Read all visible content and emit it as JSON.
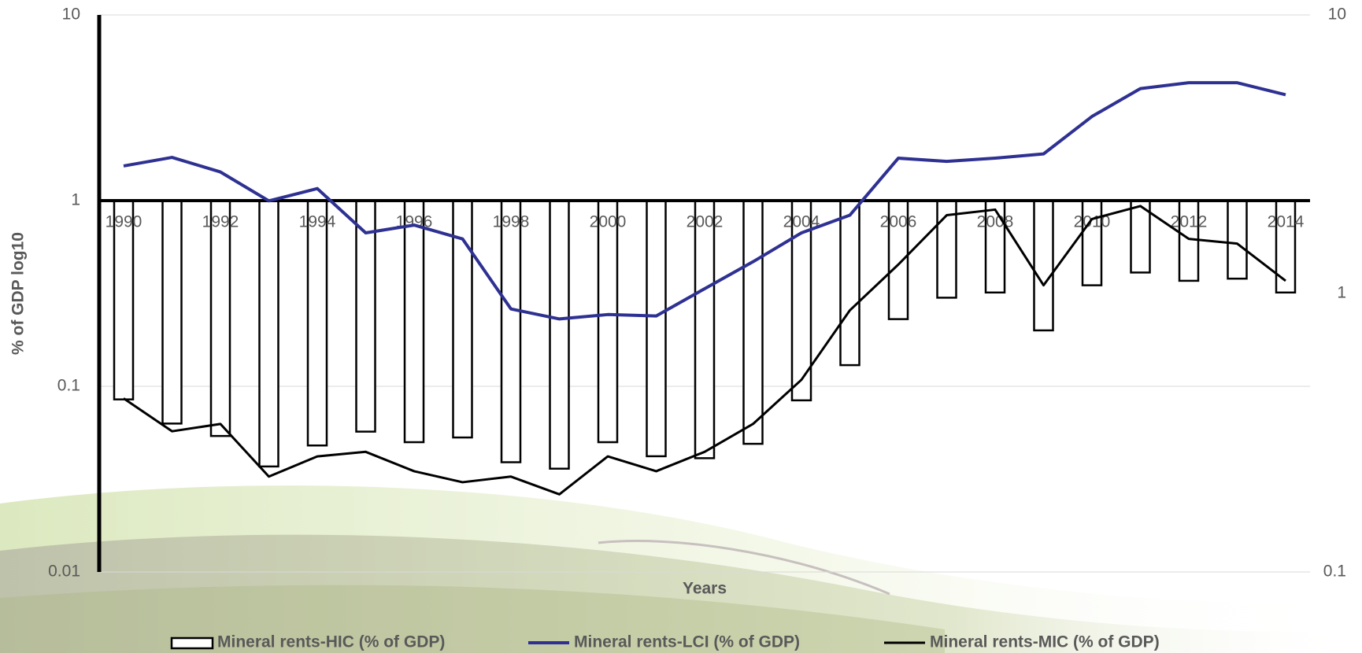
{
  "chart_data": {
    "type": "bar_line",
    "y_axis_label": "% of GDP log10",
    "x_axis_label": "Years",
    "categories": [
      "1990",
      null,
      "1992",
      null,
      "1994",
      null,
      "1996",
      null,
      "1998",
      null,
      "2000",
      null,
      "2002",
      null,
      "2004",
      null,
      "2006",
      null,
      "2008",
      null,
      "2010",
      null,
      "2012",
      null,
      "2014"
    ],
    "series": [
      {
        "name": "Mineral rents-HIC (% of GDP)",
        "type": "bar",
        "color": "#000000",
        "fill": "#ffffff",
        "axis": "y",
        "values": [
          0.085,
          0.063,
          0.054,
          0.037,
          0.048,
          0.057,
          0.05,
          0.053,
          0.039,
          0.036,
          0.05,
          0.042,
          0.041,
          0.049,
          0.084,
          0.13,
          0.23,
          0.3,
          0.32,
          0.2,
          0.35,
          0.41,
          0.37,
          0.38,
          0.32
        ]
      },
      {
        "name": "Mineral rents-LCI (% of GDP)",
        "type": "line",
        "color": "#2e3192",
        "axis": "y2",
        "values": [
          2.87,
          3.08,
          2.73,
          2.15,
          2.38,
          1.65,
          1.76,
          1.57,
          0.88,
          0.81,
          0.84,
          0.83,
          1.04,
          1.3,
          1.65,
          1.91,
          3.06,
          2.98,
          3.06,
          3.17,
          4.32,
          5.44,
          5.71,
          5.71,
          5.17
        ]
      },
      {
        "name": "Mineral rents-MIC (% of GDP)",
        "type": "line",
        "color": "#000000",
        "axis": "y2",
        "values": [
          0.42,
          0.32,
          0.34,
          0.22,
          0.26,
          0.27,
          0.23,
          0.21,
          0.22,
          0.19,
          0.26,
          0.23,
          0.27,
          0.34,
          0.49,
          0.87,
          1.27,
          1.91,
          2.0,
          1.07,
          1.85,
          2.06,
          1.57,
          1.51,
          1.11
        ]
      }
    ],
    "log_scale": true,
    "ylim": [
      0.01,
      10
    ],
    "yticks": [
      0.01,
      0.1,
      1,
      10
    ],
    "y2lim": [
      0.1,
      10
    ],
    "y2ticks": [
      0.1,
      1,
      10
    ],
    "grid": true,
    "legend": "bottom"
  }
}
